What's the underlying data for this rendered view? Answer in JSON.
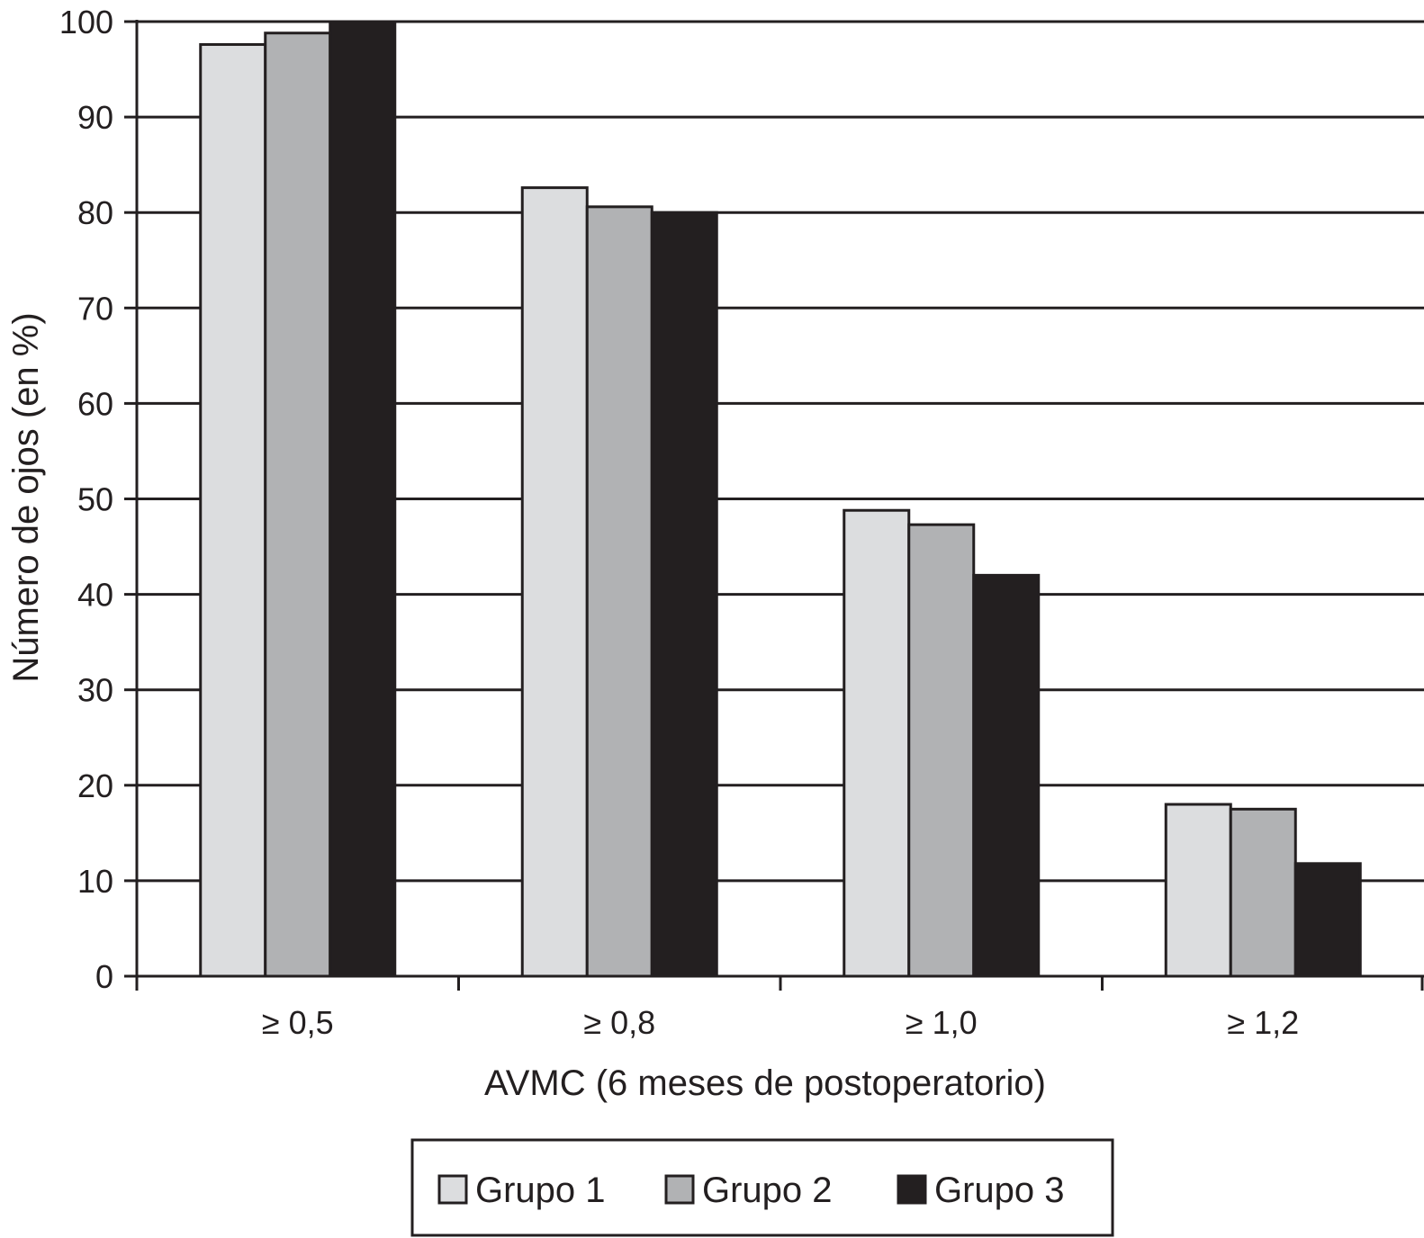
{
  "chart_data": {
    "type": "bar",
    "title": "",
    "xlabel": "AVMC (6 meses de postoperatorio)",
    "ylabel": "Número de ojos (en %)",
    "categories": [
      "≥ 0,5",
      "≥ 0,8",
      "≥ 1,0",
      "≥ 1,2"
    ],
    "y_ticks": [
      "0",
      "10",
      "20",
      "30",
      "40",
      "50",
      "60",
      "70",
      "80",
      "90",
      "100"
    ],
    "ylim": [
      0,
      100
    ],
    "grid": true,
    "legend_position": "bottom",
    "series": [
      {
        "name": "Grupo 1",
        "color": "#dcdddf",
        "values": [
          97.6,
          82.6,
          48.8,
          18.0
        ]
      },
      {
        "name": "Grupo 2",
        "color": "#b1b2b4",
        "values": [
          98.8,
          80.6,
          47.3,
          17.5
        ]
      },
      {
        "name": "Grupo 3",
        "color": "#231f20",
        "values": [
          100.0,
          80.0,
          42.0,
          11.8
        ]
      }
    ]
  }
}
